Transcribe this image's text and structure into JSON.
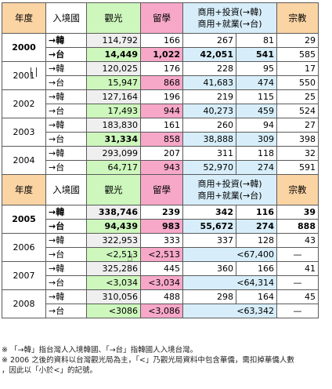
{
  "headers": {
    "year": "年度",
    "dir": "入境國",
    "tourism": "觀光",
    "study": "留學",
    "business_line1": "商用+投資(→韓)",
    "business_line2": "商用+就業(→台)",
    "religion": "宗教"
  },
  "rows_a": [
    {
      "year": "2000",
      "dir": "→韓",
      "tourism": "114,792",
      "study": "166",
      "b1": "267",
      "b2": "81",
      "rel": "29"
    },
    {
      "year": "",
      "dir": "→台",
      "tourism": "14,449",
      "study": "1,022",
      "b1": "42,051",
      "b2": "541",
      "rel": "585"
    },
    {
      "year": "2001",
      "dir": "→韓",
      "tourism": "120,025",
      "study": "176",
      "b1": "228",
      "b2": "95",
      "rel": "17"
    },
    {
      "year": "",
      "dir": "→台",
      "tourism": "15,947",
      "study": "868",
      "b1": "41,683",
      "b2": "474",
      "rel": "550"
    },
    {
      "year": "2002",
      "dir": "→韓",
      "tourism": "127,164",
      "study": "196",
      "b1": "219",
      "b2": "115",
      "rel": "25"
    },
    {
      "year": "",
      "dir": "→台",
      "tourism": "17,493",
      "study": "944",
      "b1": "40,273",
      "b2": "459",
      "rel": "524"
    },
    {
      "year": "2003",
      "dir": "→韓",
      "tourism": "183,830",
      "study": "161",
      "b1": "260",
      "b2": "94",
      "rel": "27"
    },
    {
      "year": "",
      "dir": "→台",
      "tourism": "31,334",
      "study": "858",
      "b1": "38,888",
      "b2": "309",
      "rel": "398"
    },
    {
      "year": "2004",
      "dir": "→韓",
      "tourism": "293,099",
      "study": "207",
      "b1": "311",
      "b2": "118",
      "rel": "32"
    },
    {
      "year": "",
      "dir": "→台",
      "tourism": "64,717",
      "study": "943",
      "b1": "52,970",
      "b2": "274",
      "rel": "591"
    }
  ],
  "rows_b": [
    {
      "year": "2005",
      "dir": "→韓",
      "tourism": "338,746",
      "study": "239",
      "b1": "342",
      "b2": "116",
      "rel": "39"
    },
    {
      "year": "",
      "dir": "→台",
      "tourism": "94,439",
      "study": "983",
      "b1": "55,672",
      "b2": "274",
      "rel": "888"
    },
    {
      "year": "2006",
      "dir": "→韓",
      "tourism": "322,953",
      "study": "333",
      "b1": "337",
      "b2": "128",
      "rel": "43"
    },
    {
      "year": "",
      "dir": "→台",
      "tourism": "<2,513",
      "study": "<2,513",
      "bmerged": "<67,400",
      "rel": "—"
    },
    {
      "year": "2007",
      "dir": "→韓",
      "tourism": "325,286",
      "study": "445",
      "b1": "360",
      "b2": "166",
      "rel": "41"
    },
    {
      "year": "",
      "dir": "→台",
      "tourism": "<3,034",
      "study": "<3,034",
      "bmerged": "<64,314",
      "rel": "—"
    },
    {
      "year": "2008",
      "dir": "→韓",
      "tourism": "310,056",
      "study": "488",
      "b1": "298",
      "b2": "164",
      "rel": "45"
    },
    {
      "year": "",
      "dir": "→台",
      "tourism": "<3086",
      "study": "<3,086",
      "bmerged": "<63,342",
      "rel": "—"
    }
  ],
  "notes": {
    "line1": "※ 「→韓」指台灣人入境韓國、「→台」指韓國人入境台灣。",
    "line2": "※ 2006 之後的資料以台灣觀光局為主，「<」乃觀光局資料中包含華僑，需扣掉華僑人數",
    "line3": "，因此以「小於<」的記號。"
  }
}
